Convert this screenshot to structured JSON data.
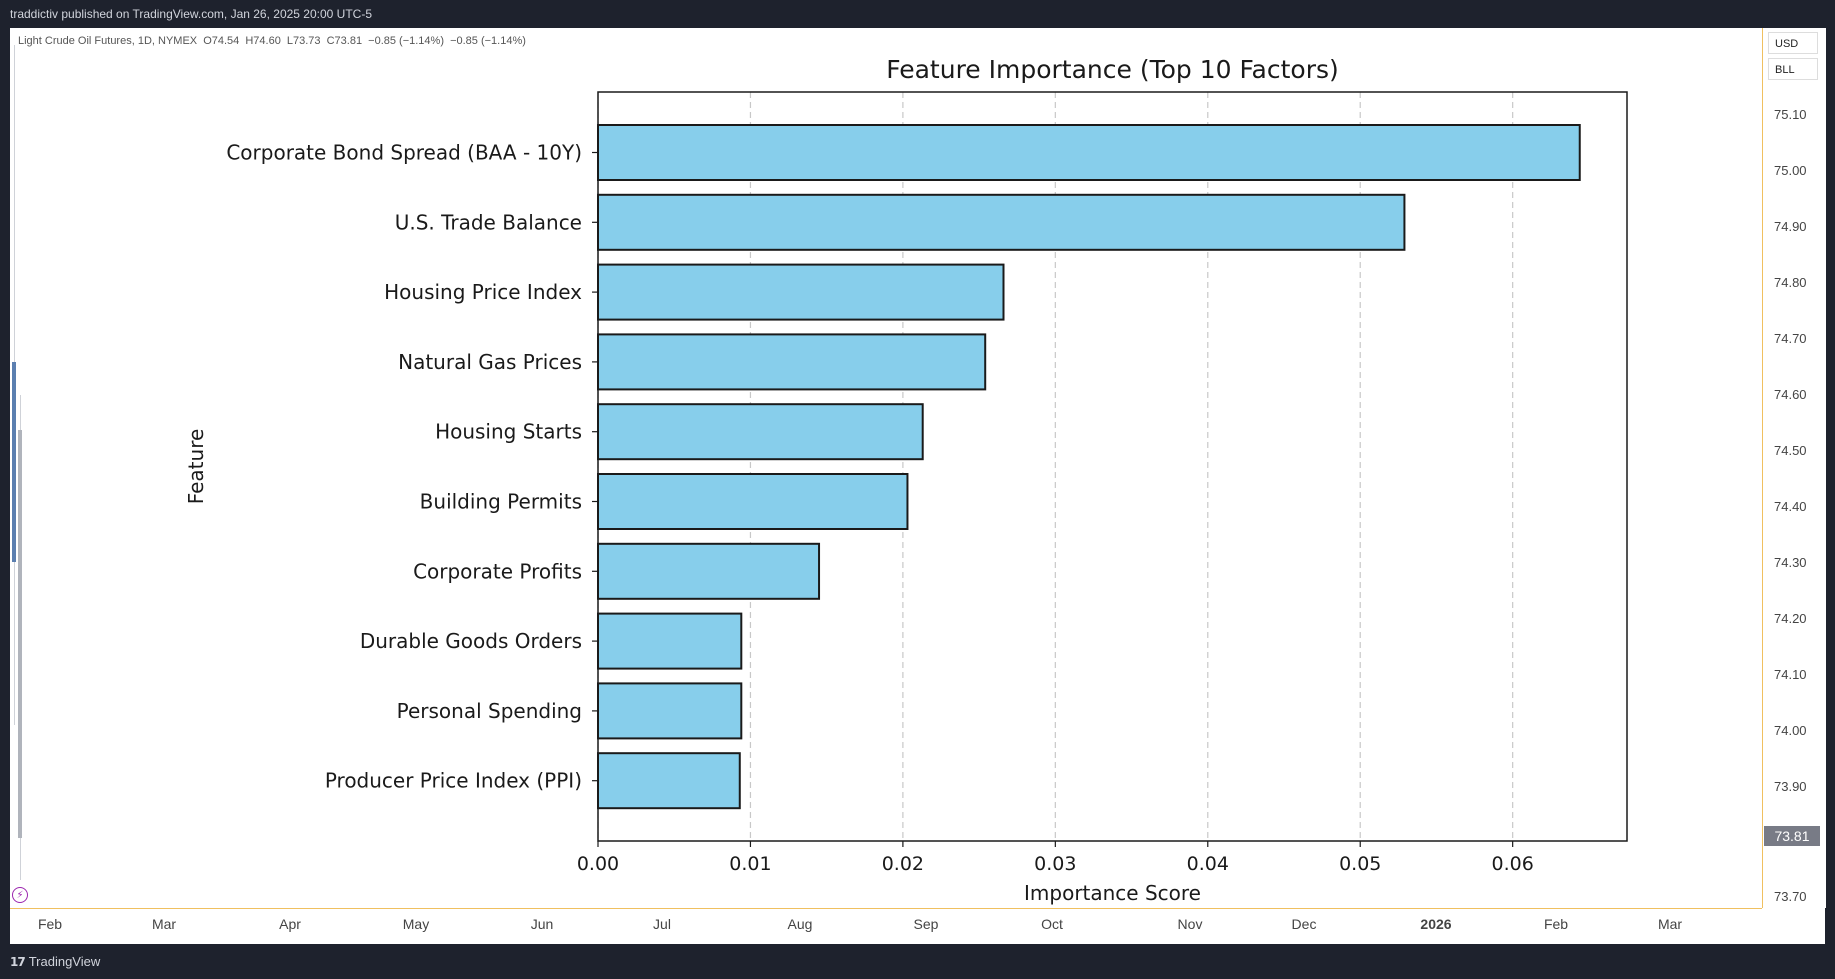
{
  "header": {
    "published_text": "traddictiv published on TradingView.com, Jan 26, 2025 20:00 UTC-5"
  },
  "legend": {
    "symbol": "Light Crude Oil Futures, 1D, NYMEX",
    "open": "O74.54",
    "high": "H74.60",
    "low": "L73.73",
    "close": "C73.81",
    "change1": "−0.85 (−1.14%)",
    "change2": "−0.85 (−1.14%)"
  },
  "price_axis": {
    "currency": "USD",
    "unit": "BLL",
    "labels": [
      "75.10",
      "75.00",
      "74.90",
      "74.80",
      "74.70",
      "74.60",
      "74.50",
      "74.40",
      "74.30",
      "74.20",
      "74.10",
      "74.00",
      "73.90",
      "73.70"
    ],
    "current_price": "73.81"
  },
  "time_axis": {
    "labels": [
      "Feb",
      "Mar",
      "Apr",
      "May",
      "Jun",
      "Jul",
      "Aug",
      "Sep",
      "Oct",
      "Nov",
      "Dec",
      "2026",
      "Feb",
      "Mar"
    ]
  },
  "footer": {
    "logo_mark": "17",
    "logo_text": "TradingView"
  },
  "colors": {
    "bar_fill": "#87ceeb",
    "bar_edge": "#1a1a1a",
    "gridline": "#c8c8c8"
  },
  "chart_data": {
    "type": "bar",
    "orientation": "horizontal",
    "title": "Feature Importance (Top 10 Factors)",
    "xlabel": "Importance Score",
    "ylabel": "Feature",
    "categories": [
      "Corporate Bond Spread (BAA - 10Y)",
      "U.S. Trade Balance",
      "Housing Price Index",
      "Natural Gas Prices",
      "Housing Starts",
      "Building Permits",
      "Corporate Profits",
      "Durable Goods Orders",
      "Personal Spending",
      "Producer Price Index (PPI)"
    ],
    "values": [
      0.0644,
      0.0529,
      0.0266,
      0.0254,
      0.0213,
      0.0203,
      0.0145,
      0.0094,
      0.0094,
      0.0093
    ],
    "xlim": [
      0,
      0.0675
    ],
    "xticks": [
      "0.00",
      "0.01",
      "0.02",
      "0.03",
      "0.04",
      "0.05",
      "0.06"
    ],
    "grid": "x-dashed"
  }
}
